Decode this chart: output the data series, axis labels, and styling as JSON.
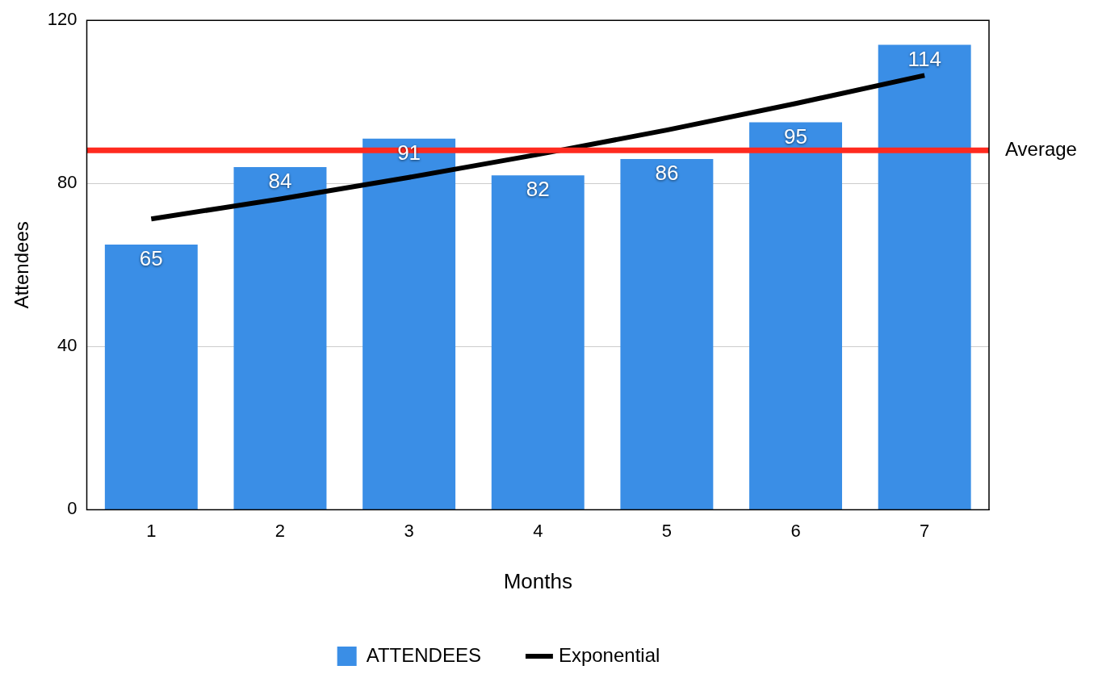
{
  "chart_data": {
    "type": "bar",
    "xlabel": "Months",
    "ylabel": "Attendees",
    "categories": [
      "1",
      "2",
      "3",
      "4",
      "5",
      "6",
      "7"
    ],
    "series": [
      {
        "name": "ATTENDEES",
        "color": "#3a8ee6",
        "values": [
          65,
          84,
          91,
          82,
          86,
          95,
          114
        ],
        "value_labels": [
          "65",
          "84",
          "91",
          "82",
          "86",
          "95",
          "114"
        ]
      },
      {
        "name": "Exponential",
        "type": "line",
        "color": "#000000",
        "values": [
          71.3,
          76.2,
          81.5,
          87.1,
          93.1,
          99.6,
          106.5
        ]
      }
    ],
    "ylim": [
      0,
      120
    ],
    "yticks": [
      0,
      40,
      80,
      120
    ],
    "grid": "y",
    "legend": "bottom",
    "marker": "none",
    "line_style": "solid",
    "ref_lines": [
      {
        "axis": "y",
        "value": 88.1,
        "label": "Average",
        "color": "#ff2a1f"
      }
    ]
  }
}
